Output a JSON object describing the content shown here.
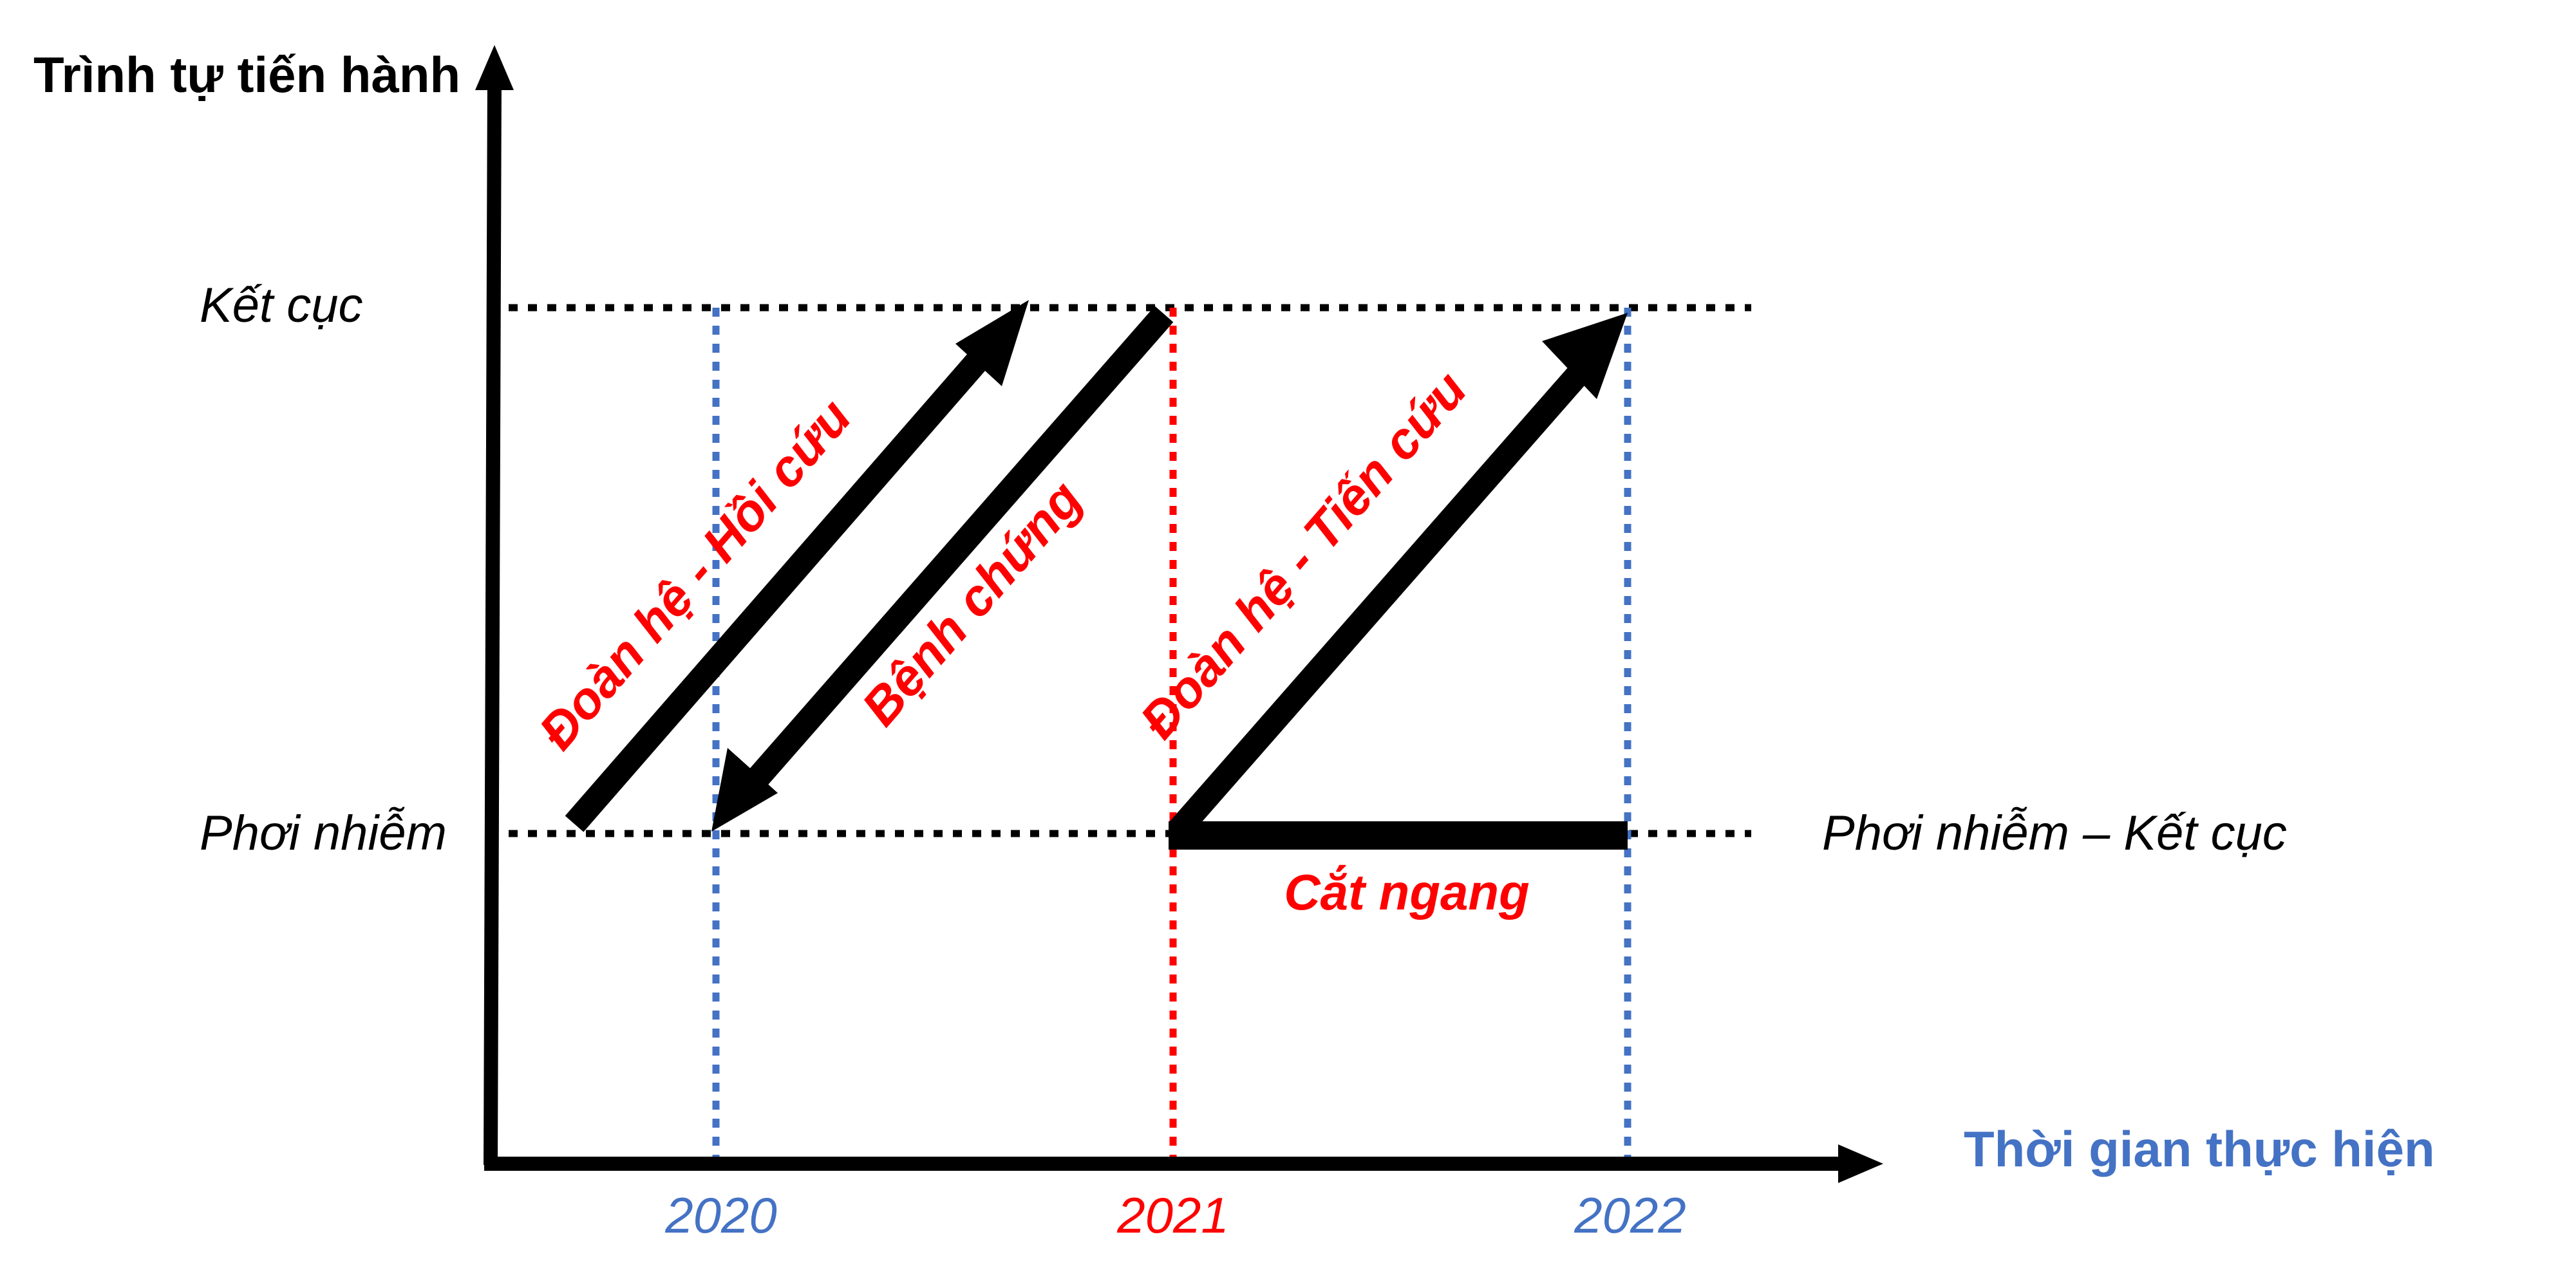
{
  "y_axis": {
    "title": "Trình tự tiến hành"
  },
  "x_axis": {
    "title": "Thời gian thực hiện"
  },
  "levels": {
    "outcome": "Kết cục",
    "exposure": "Phơi nhiễm",
    "exposure_outcome": "Phơi nhiễm – Kết cục"
  },
  "years": [
    {
      "label": "2020",
      "color": "#4472C4"
    },
    {
      "label": "2021",
      "color": "#FF0000"
    },
    {
      "label": "2022",
      "color": "#4472C4"
    }
  ],
  "designs": {
    "cohort_retrospective": "Đoàn hệ - Hồi cứu",
    "case_control": "Bệnh chứng",
    "cohort_prospective": "Đoàn hệ - Tiến cứu",
    "cross_sectional": "Cắt ngang"
  },
  "colors": {
    "axis": "#000000",
    "label_red": "#FF0000",
    "x_title": "#4472C4",
    "guide_line": "#000000"
  }
}
